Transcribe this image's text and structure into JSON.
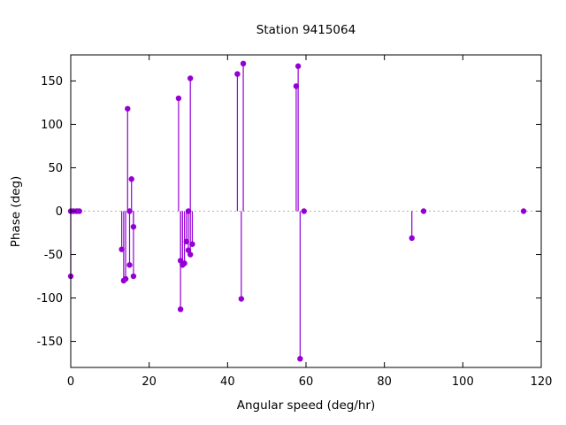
{
  "chart_data": {
    "type": "scatter",
    "style": "impulses-with-points",
    "title": "Station 9415064",
    "xlabel": "Angular speed (deg/hr)",
    "ylabel": "Phase (deg)",
    "xlim": [
      0,
      120
    ],
    "ylim": [
      -180,
      180
    ],
    "xticks": [
      0,
      20,
      40,
      60,
      80,
      100,
      120
    ],
    "yticks": [
      -150,
      -100,
      -50,
      0,
      50,
      100,
      150
    ],
    "zero_line": true,
    "zero_line_color": "#b0b0b0",
    "marker_color": "#9400d3",
    "border_color": "#000000",
    "points": [
      [
        0,
        -75
      ],
      [
        0,
        0
      ],
      [
        0.7,
        0
      ],
      [
        1.5,
        0
      ],
      [
        2.2,
        0
      ],
      [
        13,
        -44
      ],
      [
        13.5,
        -80
      ],
      [
        14,
        -78
      ],
      [
        14.5,
        118
      ],
      [
        15,
        0
      ],
      [
        15,
        -62
      ],
      [
        15.5,
        37
      ],
      [
        16,
        -18
      ],
      [
        16,
        -75
      ],
      [
        27.5,
        130
      ],
      [
        28,
        -113
      ],
      [
        28,
        -57
      ],
      [
        28.5,
        -62
      ],
      [
        29,
        -60
      ],
      [
        29.5,
        -35
      ],
      [
        30,
        -45
      ],
      [
        30,
        0
      ],
      [
        30.5,
        153
      ],
      [
        30.5,
        -50
      ],
      [
        31,
        -38
      ],
      [
        42.5,
        158
      ],
      [
        43.5,
        -101
      ],
      [
        44,
        170
      ],
      [
        57.5,
        144
      ],
      [
        58,
        167
      ],
      [
        58.5,
        -170
      ],
      [
        59.5,
        0
      ],
      [
        87,
        -31
      ],
      [
        90,
        0
      ],
      [
        115.5,
        0
      ]
    ]
  }
}
